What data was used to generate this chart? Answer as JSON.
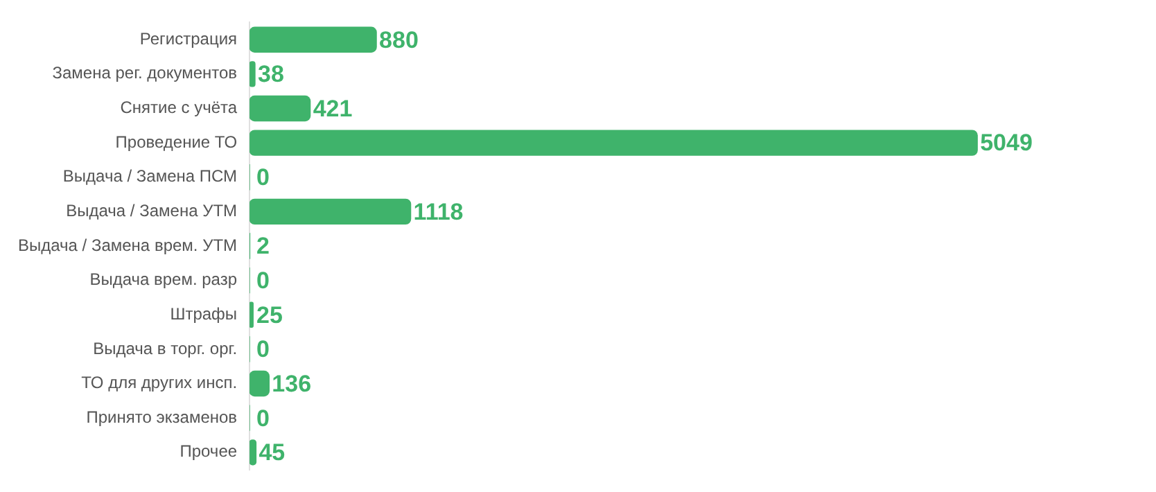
{
  "chart_data": {
    "type": "bar",
    "orientation": "horizontal",
    "tick_labels": "y",
    "categories": [
      "Регистрация",
      "Замена рег. документов",
      "Снятие с учёта",
      "Проведение ТО",
      "Выдача / Замена ПСМ",
      "Выдача / Замена УТМ",
      "Выдача / Замена врем. УТМ",
      "Выдача врем. разр",
      "Штрафы",
      "Выдача в торг. орг.",
      "ТО для других инсп.",
      "Принято экзаменов",
      "Прочее"
    ],
    "values": [
      880,
      38,
      421,
      5049,
      0,
      1118,
      2,
      0,
      25,
      0,
      136,
      0,
      45
    ],
    "color": "#3fb36b",
    "data_labels": true,
    "grid": false,
    "legend": false
  }
}
